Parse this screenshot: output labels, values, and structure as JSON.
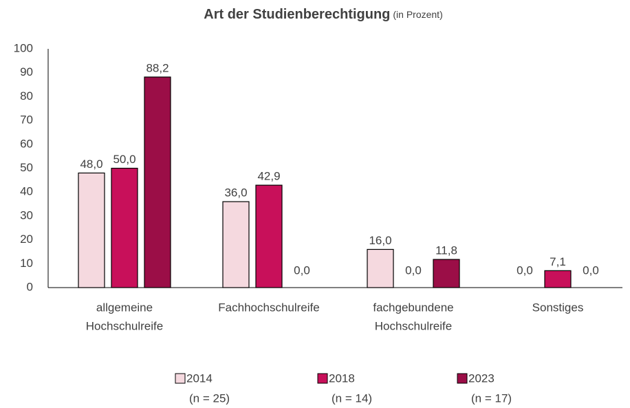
{
  "chart_data": {
    "type": "bar",
    "title": "Art der Studienberechtigung",
    "subtitle": "(in Prozent)",
    "categories": [
      [
        "allgemeine",
        "Hochschulreife"
      ],
      [
        "Fachhochschulreife"
      ],
      [
        "fachgebundene",
        "Hochschulreife"
      ],
      [
        "Sonstiges"
      ]
    ],
    "series": [
      {
        "name": "2014",
        "sample": "(n = 25)",
        "color": "#f5d9df",
        "values": [
          48.0,
          36.0,
          16.0,
          0.0
        ],
        "value_labels": [
          "48,0",
          "36,0",
          "16,0",
          "0,0"
        ]
      },
      {
        "name": "2018",
        "sample": "(n = 14)",
        "color": "#c8105a",
        "values": [
          50.0,
          42.9,
          0.0,
          7.1
        ],
        "value_labels": [
          "50,0",
          "42,9",
          "0,0",
          "7,1"
        ]
      },
      {
        "name": "2023",
        "sample": "(n = 17)",
        "color": "#9b0e47",
        "values": [
          88.2,
          0.0,
          11.8,
          0.0
        ],
        "value_labels": [
          "88,2",
          "0,0",
          "11,8",
          "0,0"
        ]
      }
    ],
    "ylim": [
      0,
      100
    ],
    "yticks": [
      0,
      10,
      20,
      30,
      40,
      50,
      60,
      70,
      80,
      90,
      100
    ],
    "grid": false
  }
}
